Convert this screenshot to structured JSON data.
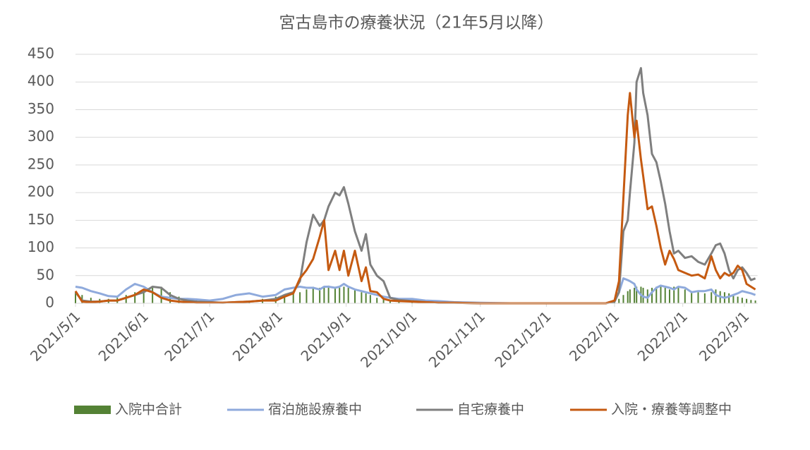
{
  "chart_data": {
    "type": "line",
    "title": "宮古島市の療養状況（21年5月以降）",
    "x": [
      "2021/5/1",
      "2021/5/4",
      "2021/5/8",
      "2021/5/12",
      "2021/5/16",
      "2021/5/20",
      "2021/5/24",
      "2021/5/28",
      "2021/6/1",
      "2021/6/5",
      "2021/6/9",
      "2021/6/13",
      "2021/6/17",
      "2021/6/21",
      "2021/6/25",
      "2021/7/1",
      "2021/7/7",
      "2021/7/13",
      "2021/7/19",
      "2021/7/25",
      "2021/7/31",
      "2021/8/4",
      "2021/8/8",
      "2021/8/11",
      "2021/8/14",
      "2021/8/17",
      "2021/8/20",
      "2021/8/22",
      "2021/8/24",
      "2021/8/27",
      "2021/8/29",
      "2021/8/31",
      "2021/9/2",
      "2021/9/5",
      "2021/9/8",
      "2021/9/10",
      "2021/9/12",
      "2021/9/15",
      "2021/9/18",
      "2021/9/21",
      "2021/9/25",
      "2021/10/1",
      "2021/10/7",
      "2021/10/13",
      "2021/10/20",
      "2021/11/1",
      "2021/11/15",
      "2021/12/1",
      "2021/12/15",
      "2021/12/28",
      "2022/1/1",
      "2022/1/3",
      "2022/1/5",
      "2022/1/7",
      "2022/1/8",
      "2022/1/10",
      "2022/1/11",
      "2022/1/13",
      "2022/1/14",
      "2022/1/16",
      "2022/1/18",
      "2022/1/20",
      "2022/1/22",
      "2022/1/24",
      "2022/1/26",
      "2022/1/28",
      "2022/1/30",
      "2022/2/2",
      "2022/2/5",
      "2022/2/8",
      "2022/2/11",
      "2022/2/14",
      "2022/2/16",
      "2022/2/18",
      "2022/2/20",
      "2022/2/22",
      "2022/2/24",
      "2022/2/26",
      "2022/2/28",
      "2022/3/2",
      "2022/3/4",
      "2022/3/6"
    ],
    "series": [
      {
        "name": "入院中合計",
        "kind": "bar",
        "color": "#548235",
        "values": [
          20,
          15,
          10,
          8,
          8,
          10,
          15,
          20,
          25,
          30,
          30,
          20,
          12,
          8,
          5,
          3,
          2,
          3,
          5,
          8,
          12,
          15,
          18,
          20,
          25,
          30,
          28,
          30,
          32,
          30,
          28,
          30,
          28,
          25,
          20,
          18,
          15,
          10,
          8,
          5,
          3,
          2,
          1,
          1,
          0,
          0,
          0,
          0,
          0,
          0,
          2,
          8,
          15,
          22,
          25,
          28,
          30,
          30,
          28,
          25,
          28,
          30,
          30,
          28,
          25,
          30,
          28,
          25,
          22,
          20,
          18,
          20,
          25,
          22,
          20,
          18,
          15,
          12,
          10,
          8,
          6,
          5
        ]
      },
      {
        "name": "宿泊施設療養中",
        "kind": "line",
        "color": "#8faadc",
        "values": [
          30,
          28,
          22,
          18,
          13,
          12,
          25,
          35,
          30,
          20,
          12,
          10,
          8,
          8,
          7,
          5,
          8,
          15,
          18,
          12,
          15,
          25,
          28,
          30,
          28,
          28,
          25,
          30,
          30,
          28,
          30,
          35,
          30,
          25,
          22,
          20,
          18,
          15,
          12,
          10,
          8,
          8,
          5,
          4,
          2,
          1,
          0,
          0,
          0,
          0,
          5,
          20,
          45,
          42,
          40,
          35,
          25,
          15,
          12,
          10,
          20,
          28,
          32,
          30,
          28,
          25,
          30,
          28,
          20,
          22,
          22,
          25,
          15,
          12,
          10,
          12,
          15,
          18,
          22,
          20,
          18,
          15
        ]
      },
      {
        "name": "自宅療養中",
        "kind": "line",
        "color": "#7f7f7f",
        "values": [
          20,
          5,
          3,
          3,
          5,
          5,
          10,
          15,
          20,
          30,
          28,
          15,
          8,
          5,
          3,
          2,
          1,
          2,
          3,
          5,
          8,
          15,
          20,
          40,
          110,
          160,
          140,
          150,
          175,
          200,
          195,
          210,
          180,
          130,
          95,
          125,
          70,
          50,
          40,
          10,
          6,
          4,
          2,
          1,
          1,
          0,
          0,
          0,
          0,
          0,
          3,
          20,
          130,
          150,
          200,
          290,
          400,
          425,
          380,
          340,
          270,
          255,
          220,
          180,
          130,
          90,
          95,
          82,
          85,
          75,
          70,
          90,
          105,
          108,
          90,
          60,
          45,
          60,
          65,
          55,
          42,
          45
        ]
      },
      {
        "name": "入院・療養等調整中",
        "kind": "line",
        "color": "#c55a11",
        "values": [
          22,
          3,
          2,
          3,
          5,
          5,
          10,
          15,
          25,
          20,
          10,
          5,
          3,
          2,
          1,
          1,
          1,
          2,
          3,
          5,
          5,
          12,
          18,
          45,
          60,
          80,
          120,
          150,
          60,
          95,
          60,
          95,
          50,
          95,
          40,
          65,
          22,
          20,
          8,
          5,
          4,
          3,
          2,
          1,
          1,
          0,
          0,
          0,
          0,
          0,
          5,
          40,
          190,
          340,
          380,
          300,
          330,
          260,
          230,
          170,
          175,
          140,
          100,
          70,
          95,
          80,
          60,
          55,
          50,
          52,
          45,
          85,
          60,
          45,
          55,
          50,
          55,
          68,
          60,
          35,
          30,
          25
        ]
      }
    ],
    "xlim": [
      "2021/5/1",
      "2022/3/7"
    ],
    "xticks": [
      "2021/5/1",
      "2021/6/1",
      "2021/7/1",
      "2021/8/1",
      "2021/9/1",
      "2021/10/1",
      "2021/11/1",
      "2021/12/1",
      "2022/1/1",
      "2022/2/1",
      "2022/3/1"
    ],
    "ylim": [
      0,
      450
    ],
    "yticks": [
      0,
      50,
      100,
      150,
      200,
      250,
      300,
      350,
      400,
      450
    ],
    "grid": true,
    "legend": "bottom"
  }
}
